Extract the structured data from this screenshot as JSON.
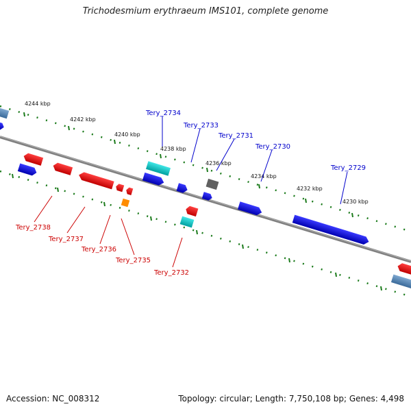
{
  "title": "Trichodesmium erythraeum IMS101, complete genome",
  "footer": {
    "accession": "Accession: NC_008312",
    "topology": "Topology: circular; Length: 7,750,108 bp; Genes: 4,498"
  },
  "colors": {
    "backbone": "#808080",
    "tick": "#1a7a1a",
    "forward_cds": "#0000ee",
    "reverse_cds": "#ee0000",
    "trna_like": "#00c8c8",
    "pseudo": "#606060",
    "misc": "#ff8c00",
    "label_blue": "#0000cc",
    "label_red": "#cc0000"
  },
  "scale_labels": [
    "4244 kbp",
    "4242 kbp",
    "4240 kbp",
    "4238 kbp",
    "4236 kbp",
    "4234 kbp",
    "4232 kbp",
    "4230 kbp"
  ],
  "genes_top": [
    "Tery_2734",
    "Tery_2733",
    "Tery_2731",
    "Tery_2730",
    "Tery_2729"
  ],
  "genes_bottom": [
    "Tery_2738",
    "Tery_2737",
    "Tery_2736",
    "Tery_2735",
    "Tery_2732"
  ]
}
